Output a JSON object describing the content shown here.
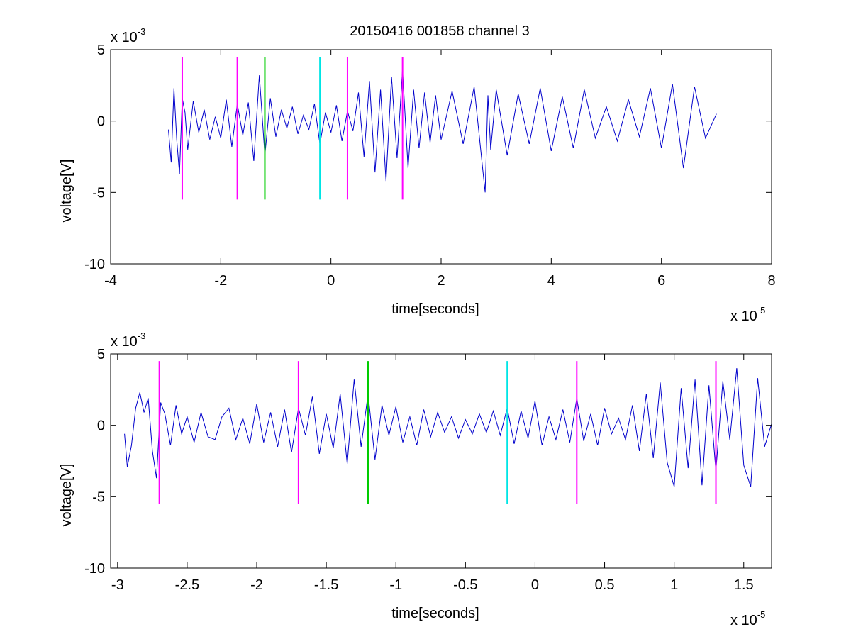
{
  "figure_title": "20150416 001858 channel 3",
  "chart_data": [
    {
      "type": "line",
      "title": "20150416 001858 channel 3",
      "xlabel": "time[seconds]",
      "ylabel": "voltage[V]",
      "x_multiplier_label": "x 10",
      "x_multiplier_exp": "-5",
      "y_multiplier_label": "x 10",
      "y_multiplier_exp": "-3",
      "xlim": [
        -4,
        8
      ],
      "ylim": [
        -10,
        5
      ],
      "xticks": [
        -4,
        -2,
        0,
        2,
        4,
        6,
        8
      ],
      "xtick_labels": [
        "-4",
        "-2",
        "0",
        "2",
        "4",
        "6",
        "8"
      ],
      "yticks": [
        -10,
        -5,
        0,
        5
      ],
      "ytick_labels": [
        "-10",
        "-5",
        "0",
        "5"
      ],
      "grid": false,
      "signal_color": "#0000cc",
      "series": [
        {
          "x": [
            -2.95,
            -2.9,
            -2.85,
            -2.8,
            -2.75,
            -2.7,
            -2.65,
            -2.6,
            -2.5,
            -2.4,
            -2.3,
            -2.2,
            -2.1,
            -2.0,
            -1.9,
            -1.8,
            -1.7,
            -1.6,
            -1.5,
            -1.4,
            -1.3,
            -1.2,
            -1.1,
            -1.0,
            -0.9,
            -0.8,
            -0.7,
            -0.6,
            -0.5,
            -0.4,
            -0.3,
            -0.2,
            -0.1,
            0.0,
            0.1,
            0.2,
            0.3,
            0.4,
            0.5,
            0.6,
            0.7,
            0.8,
            0.9,
            1.0,
            1.1,
            1.2,
            1.3,
            1.4,
            1.5,
            1.6,
            1.7,
            1.8,
            1.9,
            2.0,
            2.2,
            2.4,
            2.6,
            2.8,
            2.85,
            2.9,
            3.0,
            3.2,
            3.4,
            3.6,
            3.8,
            4.0,
            4.2,
            4.4,
            4.6,
            4.8,
            5.0,
            5.2,
            5.4,
            5.6,
            5.8,
            6.0,
            6.2,
            6.4,
            6.6,
            6.8,
            7.0
          ],
          "y": [
            -0.6,
            -2.9,
            2.3,
            -1.3,
            -3.7,
            1.6,
            0.6,
            -2.0,
            1.4,
            -0.8,
            0.8,
            -1.3,
            0.3,
            -1.2,
            1.5,
            -1.8,
            1.2,
            -1.0,
            1.3,
            -2.8,
            3.2,
            -2.4,
            1.6,
            -1.1,
            0.8,
            -0.5,
            1.0,
            -0.9,
            0.4,
            -0.6,
            1.2,
            -1.6,
            0.6,
            -0.8,
            1.1,
            -1.4,
            0.7,
            -0.7,
            2.0,
            -2.5,
            2.8,
            -3.6,
            2.2,
            -4.2,
            3.1,
            -2.6,
            3.6,
            -3.3,
            2.2,
            -1.9,
            2.0,
            -1.5,
            1.8,
            -1.3,
            2.1,
            -1.6,
            2.4,
            -5.0,
            1.8,
            -2.0,
            2.2,
            -2.4,
            1.9,
            -1.6,
            2.3,
            -2.1,
            1.7,
            -1.9,
            2.2,
            -1.2,
            1.0,
            -1.4,
            1.5,
            -1.1,
            2.3,
            -1.9,
            2.6,
            -3.3,
            2.4,
            -1.2,
            0.5
          ]
        }
      ],
      "markers": [
        {
          "x": -2.7,
          "color": "#ff00ff"
        },
        {
          "x": -1.7,
          "color": "#ff00ff"
        },
        {
          "x": -1.2,
          "color": "#00cc00"
        },
        {
          "x": -0.2,
          "color": "#00e5e5"
        },
        {
          "x": 0.3,
          "color": "#ff00ff"
        },
        {
          "x": 1.3,
          "color": "#ff00ff"
        }
      ],
      "marker_y_range": [
        -5.5,
        4.5
      ]
    },
    {
      "type": "line",
      "title": "",
      "xlabel": "time[seconds]",
      "ylabel": "voltage[V]",
      "x_multiplier_label": "x 10",
      "x_multiplier_exp": "-5",
      "y_multiplier_label": "x 10",
      "y_multiplier_exp": "-3",
      "xlim": [
        -3.05,
        1.7
      ],
      "ylim": [
        -10,
        5
      ],
      "xticks": [
        -3,
        -2.5,
        -2,
        -1.5,
        -1,
        -0.5,
        0,
        0.5,
        1,
        1.5
      ],
      "xtick_labels": [
        "-3",
        "-2.5",
        "-2",
        "-1.5",
        "-1",
        "-0.5",
        "0",
        "0.5",
        "1",
        "1.5"
      ],
      "yticks": [
        -10,
        -5,
        0,
        5
      ],
      "ytick_labels": [
        "-10",
        "-5",
        "0",
        "5"
      ],
      "grid": false,
      "signal_color": "#0000cc",
      "series": [
        {
          "x": [
            -2.95,
            -2.93,
            -2.9,
            -2.87,
            -2.84,
            -2.81,
            -2.78,
            -2.75,
            -2.72,
            -2.69,
            -2.66,
            -2.62,
            -2.58,
            -2.54,
            -2.5,
            -2.45,
            -2.4,
            -2.35,
            -2.3,
            -2.25,
            -2.2,
            -2.15,
            -2.1,
            -2.05,
            -2.0,
            -1.95,
            -1.9,
            -1.85,
            -1.8,
            -1.75,
            -1.7,
            -1.65,
            -1.6,
            -1.55,
            -1.5,
            -1.45,
            -1.4,
            -1.35,
            -1.3,
            -1.25,
            -1.2,
            -1.15,
            -1.1,
            -1.05,
            -1.0,
            -0.95,
            -0.9,
            -0.85,
            -0.8,
            -0.75,
            -0.7,
            -0.65,
            -0.6,
            -0.55,
            -0.5,
            -0.45,
            -0.4,
            -0.35,
            -0.3,
            -0.25,
            -0.2,
            -0.15,
            -0.1,
            -0.05,
            0.0,
            0.05,
            0.1,
            0.15,
            0.2,
            0.25,
            0.3,
            0.35,
            0.4,
            0.45,
            0.5,
            0.55,
            0.6,
            0.65,
            0.7,
            0.75,
            0.8,
            0.85,
            0.9,
            0.95,
            1.0,
            1.05,
            1.1,
            1.15,
            1.2,
            1.25,
            1.3,
            1.35,
            1.4,
            1.45,
            1.5,
            1.55,
            1.6,
            1.65,
            1.7
          ],
          "y": [
            -0.6,
            -2.9,
            -1.4,
            1.2,
            2.3,
            0.9,
            1.9,
            -1.8,
            -3.7,
            1.6,
            0.8,
            -1.4,
            1.4,
            -0.6,
            0.6,
            -1.2,
            0.9,
            -0.8,
            -1.0,
            0.6,
            1.2,
            -1.0,
            0.5,
            -1.3,
            1.5,
            -1.2,
            0.9,
            -1.5,
            1.1,
            -1.9,
            1.2,
            -0.7,
            2.0,
            -2.0,
            0.8,
            -1.6,
            2.2,
            -2.7,
            3.2,
            -1.5,
            2.2,
            -2.4,
            1.4,
            -0.7,
            1.3,
            -1.2,
            0.6,
            -1.4,
            1.1,
            -0.8,
            0.9,
            -0.5,
            0.6,
            -0.9,
            0.4,
            -0.6,
            0.8,
            -0.5,
            1.0,
            -0.7,
            1.2,
            -1.3,
            1.0,
            -0.9,
            1.7,
            -1.4,
            0.6,
            -1.0,
            1.1,
            -1.2,
            1.9,
            -1.1,
            0.8,
            -1.4,
            1.2,
            -0.6,
            0.5,
            -1.0,
            1.4,
            -1.8,
            2.2,
            -2.3,
            3.0,
            -2.6,
            -4.3,
            2.6,
            -3.0,
            3.2,
            -4.2,
            2.8,
            -3.2,
            3.1,
            -1.0,
            4.0,
            -2.8,
            -4.3,
            3.3,
            -1.5,
            0.1
          ]
        }
      ],
      "markers": [
        {
          "x": -2.7,
          "color": "#ff00ff"
        },
        {
          "x": -1.7,
          "color": "#ff00ff"
        },
        {
          "x": -1.2,
          "color": "#00cc00"
        },
        {
          "x": -0.2,
          "color": "#00e5e5"
        },
        {
          "x": 0.3,
          "color": "#ff00ff"
        },
        {
          "x": 1.3,
          "color": "#ff00ff"
        }
      ],
      "marker_y_range": [
        -5.5,
        4.5
      ]
    }
  ]
}
